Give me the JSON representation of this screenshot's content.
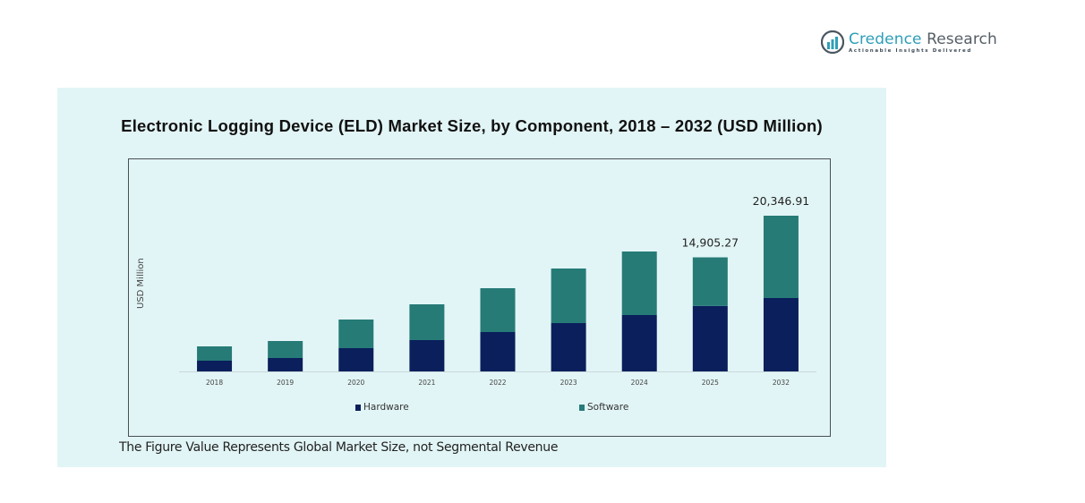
{
  "brand": {
    "name_part1": "Credence",
    "name_part2": " Research",
    "tagline": "Actionable Insights Delivered",
    "primary_color": "#2e9fb8"
  },
  "footnote": "The Figure Value Represents Global Market Size, not Segmental Revenue",
  "chart_data": {
    "type": "bar",
    "stacked": true,
    "title": "Electronic Logging Device (ELD) Market Size, by Component, 2018 – 2032 (USD Million)",
    "xlabel": "",
    "ylabel": "USD Million",
    "categories": [
      "2018",
      "2019",
      "2020",
      "2021",
      "2022",
      "2023",
      "2024",
      "2025",
      "2032"
    ],
    "series": [
      {
        "name": "Hardware",
        "color": "#0a1f5c",
        "values": [
          1403,
          1754,
          3040,
          4093,
          5145,
          6315,
          7367,
          8560,
          9590
        ]
      },
      {
        "name": "Software",
        "color": "#267b77",
        "values": [
          1871,
          2222,
          3742,
          4677,
          5730,
          7132,
          8303,
          6345.27,
          10756.91
        ]
      }
    ],
    "totals": [
      3274,
      3976,
      6782,
      8770,
      10875,
      13447,
      15670,
      14905.27,
      20346.91
    ],
    "data_labels": [
      {
        "category": "2025",
        "text": "14,905.27"
      },
      {
        "category": "2032",
        "text": "20,346.91"
      }
    ],
    "ylim": [
      0,
      20346.91
    ],
    "y_axis_visible": false,
    "grid": false,
    "legend": {
      "position": "bottom",
      "entries": [
        "Hardware",
        "Software"
      ]
    }
  }
}
